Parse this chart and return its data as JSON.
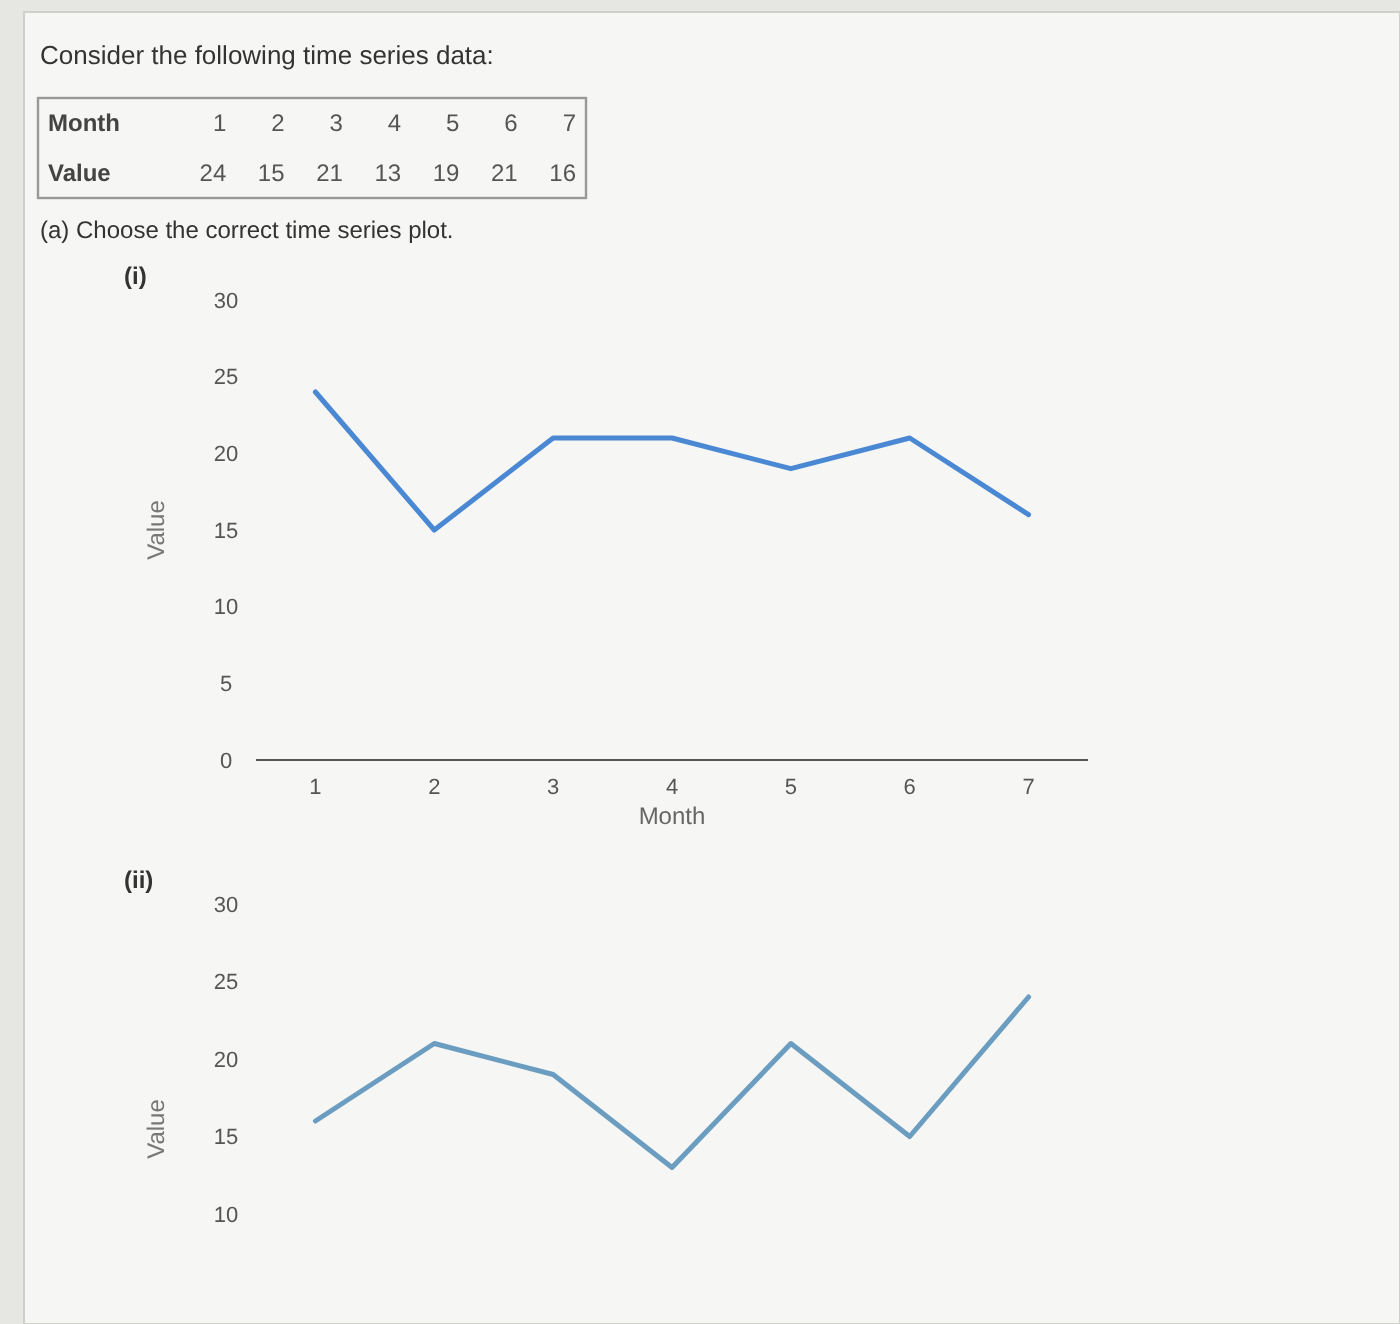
{
  "chart_data": [
    {
      "type": "heatmap",
      "title": "Consider the following time series data:",
      "xlabel": "Month",
      "categories": [
        "1",
        "2",
        "3",
        "4",
        "5",
        "6",
        "7"
      ],
      "y_categories": [
        "Value"
      ],
      "cells": [
        [
          24,
          15,
          21,
          13,
          19,
          21,
          16
        ]
      ],
      "data_labels": true,
      "annotations": [
        "(a) Choose the correct time series plot."
      ]
    },
    {
      "type": "line",
      "title": "(i)",
      "xlabel": "Month",
      "ylabel": "Value",
      "categories": [
        "1",
        "2",
        "3",
        "4",
        "5",
        "6",
        "7"
      ],
      "values": [
        24,
        15,
        21,
        21,
        19,
        21,
        16
      ],
      "color": "#4a88d4",
      "ylim": [
        0,
        30
      ],
      "yticks": [
        0,
        5,
        10,
        15,
        20,
        25,
        30
      ]
    },
    {
      "type": "line",
      "title": "(ii)",
      "ylabel": "Value",
      "categories": [
        null,
        null,
        null,
        null,
        null,
        null,
        null
      ],
      "values": [
        16,
        21,
        19,
        13,
        21,
        15,
        24
      ],
      "color": "#6b9dc0",
      "ylim": [
        10,
        30
      ],
      "yticks": [
        10,
        15,
        20,
        25,
        30
      ]
    }
  ]
}
